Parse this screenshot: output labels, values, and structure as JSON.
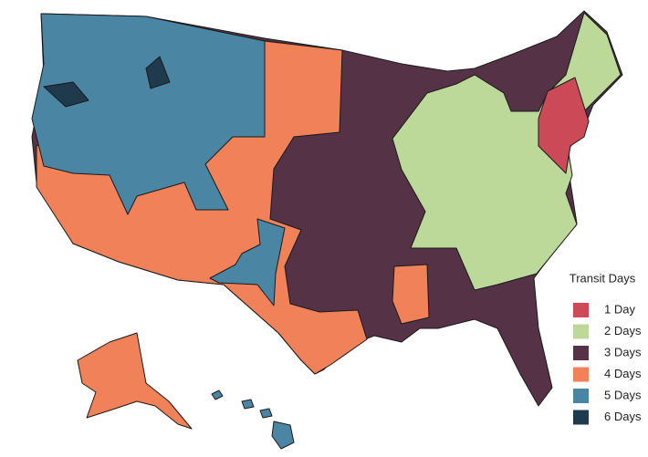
{
  "legend": {
    "title": "Transit Days",
    "items": [
      {
        "label": "1 Day",
        "color": "#cc4a57"
      },
      {
        "label": "2 Days",
        "color": "#bcd99a"
      },
      {
        "label": "3 Days",
        "color": "#553246"
      },
      {
        "label": "4 Days",
        "color": "#f08158"
      },
      {
        "label": "5 Days",
        "color": "#4a86a4"
      },
      {
        "label": "6 Days",
        "color": "#1e3a4c"
      }
    ]
  }
}
